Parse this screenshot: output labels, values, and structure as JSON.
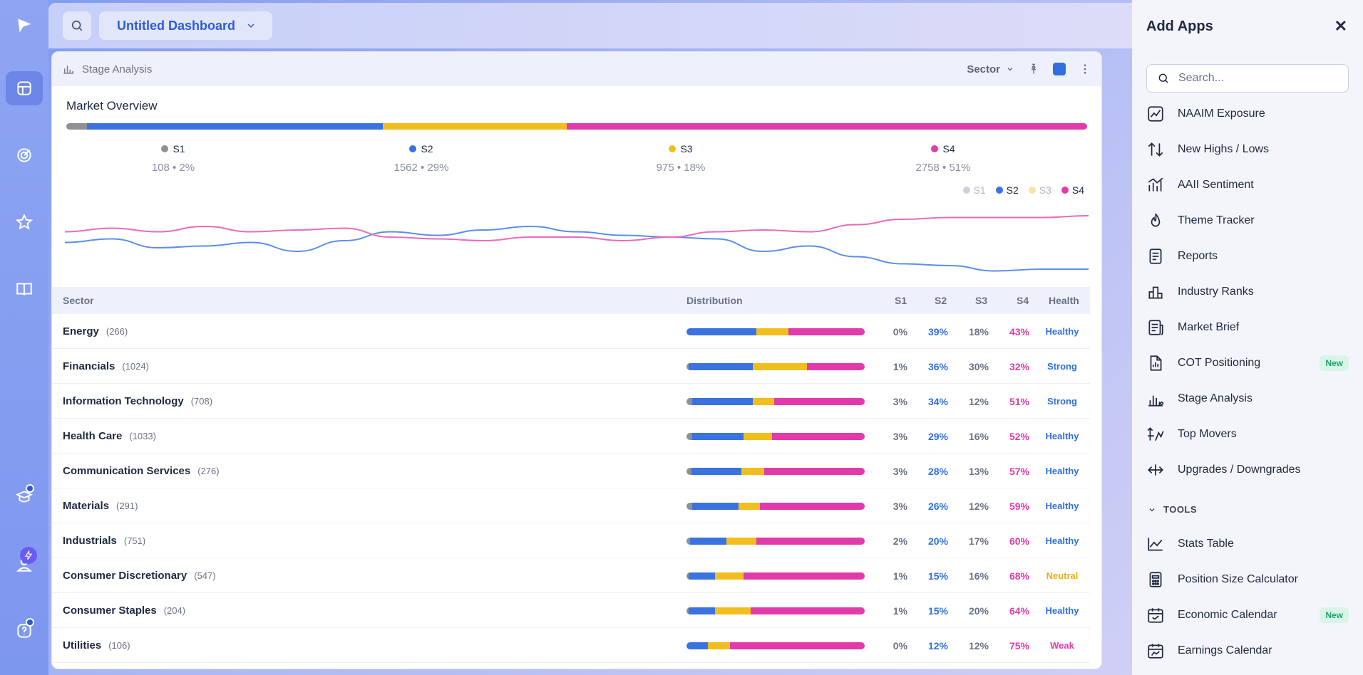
{
  "topbar": {
    "dashboard_name": "Untitled Dashboard"
  },
  "panel": {
    "title": "Stage Analysis",
    "sector_select": "Sector",
    "overview_title": "Market Overview"
  },
  "colors": {
    "s1": "#8f8f95",
    "s2": "#3a72e0",
    "s3": "#f2be1d",
    "s4": "#e33aab",
    "healthy": "#2f6fe0",
    "neutral": "#e8b10c",
    "weak": "#e23aa7"
  },
  "stages": [
    {
      "name": "S1",
      "summary": "108 • 2%",
      "pct": 2
    },
    {
      "name": "S2",
      "summary": "1562 • 29%",
      "pct": 29
    },
    {
      "name": "S3",
      "summary": "975 • 18%",
      "pct": 18
    },
    {
      "name": "S4",
      "summary": "2758 • 51%",
      "pct": 51
    }
  ],
  "legend": [
    "S1",
    "S2",
    "S3",
    "S4"
  ],
  "chart_data": {
    "type": "line",
    "series": [
      {
        "name": "S2",
        "values": [
          40,
          42,
          37,
          38,
          40,
          35,
          41,
          46,
          44,
          47,
          49,
          46,
          44,
          43,
          42,
          35,
          38,
          32,
          28,
          27,
          24,
          25,
          25
        ]
      },
      {
        "name": "S4",
        "values": [
          46,
          48,
          46,
          49,
          46,
          47,
          48,
          43,
          42,
          41,
          43,
          43,
          41,
          43,
          46,
          47,
          46,
          50,
          53,
          54,
          54,
          54,
          55
        ]
      }
    ]
  },
  "table": {
    "headers": {
      "sector": "Sector",
      "distribution": "Distribution",
      "s1": "S1",
      "s2": "S2",
      "s3": "S3",
      "s4": "S4",
      "health": "Health"
    },
    "rows": [
      {
        "name": "Energy",
        "count": "(266)",
        "s1": "0%",
        "s2": "39%",
        "s3": "18%",
        "s4": "43%",
        "health": "Healthy",
        "d": [
          0,
          39,
          18,
          43
        ]
      },
      {
        "name": "Financials",
        "count": "(1024)",
        "s1": "1%",
        "s2": "36%",
        "s3": "30%",
        "s4": "32%",
        "health": "Strong",
        "d": [
          1,
          36,
          30,
          32
        ]
      },
      {
        "name": "Information Technology",
        "count": "(708)",
        "s1": "3%",
        "s2": "34%",
        "s3": "12%",
        "s4": "51%",
        "health": "Strong",
        "d": [
          3,
          34,
          12,
          51
        ]
      },
      {
        "name": "Health Care",
        "count": "(1033)",
        "s1": "3%",
        "s2": "29%",
        "s3": "16%",
        "s4": "52%",
        "health": "Healthy",
        "d": [
          3,
          29,
          16,
          52
        ]
      },
      {
        "name": "Communication Services",
        "count": "(276)",
        "s1": "3%",
        "s2": "28%",
        "s3": "13%",
        "s4": "57%",
        "health": "Healthy",
        "d": [
          3,
          28,
          13,
          57
        ]
      },
      {
        "name": "Materials",
        "count": "(291)",
        "s1": "3%",
        "s2": "26%",
        "s3": "12%",
        "s4": "59%",
        "health": "Healthy",
        "d": [
          3,
          26,
          12,
          59
        ]
      },
      {
        "name": "Industrials",
        "count": "(751)",
        "s1": "2%",
        "s2": "20%",
        "s3": "17%",
        "s4": "60%",
        "health": "Healthy",
        "d": [
          2,
          20,
          17,
          60
        ]
      },
      {
        "name": "Consumer Discretionary",
        "count": "(547)",
        "s1": "1%",
        "s2": "15%",
        "s3": "16%",
        "s4": "68%",
        "health": "Neutral",
        "d": [
          1,
          15,
          16,
          68
        ]
      },
      {
        "name": "Consumer Staples",
        "count": "(204)",
        "s1": "1%",
        "s2": "15%",
        "s3": "20%",
        "s4": "64%",
        "health": "Healthy",
        "d": [
          1,
          15,
          20,
          64
        ]
      },
      {
        "name": "Utilities",
        "count": "(106)",
        "s1": "0%",
        "s2": "12%",
        "s3": "12%",
        "s4": "75%",
        "health": "Weak",
        "d": [
          0,
          12,
          12,
          75
        ]
      }
    ]
  },
  "drawer": {
    "title": "Add Apps",
    "search_placeholder": "Search...",
    "apps": [
      {
        "label": "NAAIM Exposure",
        "icon": "chart-box-icon"
      },
      {
        "label": "New Highs / Lows",
        "icon": "arrows-updown-icon"
      },
      {
        "label": "AAII Sentiment",
        "icon": "bars-trend-icon"
      },
      {
        "label": "Theme Tracker",
        "icon": "flame-icon"
      },
      {
        "label": "Reports",
        "icon": "document-icon"
      },
      {
        "label": "Industry Ranks",
        "icon": "podium-icon"
      },
      {
        "label": "Market Brief",
        "icon": "brief-icon"
      },
      {
        "label": "COT Positioning",
        "icon": "file-chart-icon",
        "badge": "New"
      },
      {
        "label": "Stage Analysis",
        "icon": "bars-icon"
      },
      {
        "label": "Top Movers",
        "icon": "movers-icon"
      },
      {
        "label": "Upgrades / Downgrades",
        "icon": "arrows-leftright-icon"
      }
    ],
    "tools_label": "TOOLS",
    "tools": [
      {
        "label": "Stats Table",
        "icon": "line-chart-icon"
      },
      {
        "label": "Position Size Calculator",
        "icon": "calculator-icon"
      },
      {
        "label": "Economic Calendar",
        "icon": "calendar-icon",
        "badge": "New"
      },
      {
        "label": "Earnings Calendar",
        "icon": "calendar-chart-icon"
      }
    ]
  }
}
